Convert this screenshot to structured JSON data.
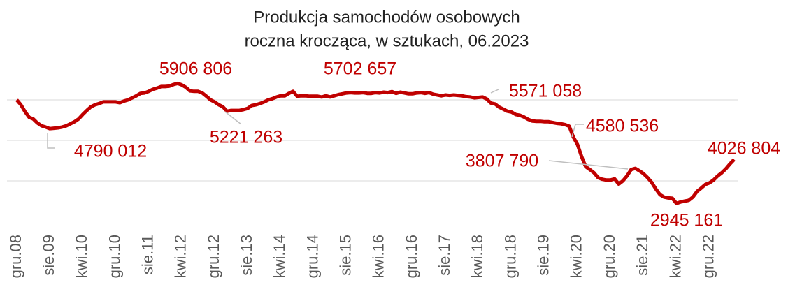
{
  "chart_data": {
    "type": "line",
    "title": [
      "Produkcja samochodów osobowych",
      "roczna krocząca, w sztukach, 06.2023"
    ],
    "categories": [
      "gru.08",
      null,
      null,
      null,
      null,
      null,
      null,
      null,
      "sie.09",
      null,
      null,
      null,
      null,
      null,
      null,
      null,
      "kwi.10",
      null,
      null,
      null,
      null,
      null,
      null,
      null,
      "gru.10",
      null,
      null,
      null,
      null,
      null,
      null,
      null,
      "sie.11",
      null,
      null,
      null,
      null,
      null,
      null,
      null,
      "kwi.12",
      null,
      null,
      null,
      null,
      null,
      null,
      null,
      "gru.12",
      null,
      null,
      null,
      null,
      null,
      null,
      null,
      "sie.13",
      null,
      null,
      null,
      null,
      null,
      null,
      null,
      "kwi.14",
      null,
      null,
      null,
      null,
      null,
      null,
      null,
      "gru.14",
      null,
      null,
      null,
      null,
      null,
      null,
      null,
      "sie.15",
      null,
      null,
      null,
      null,
      null,
      null,
      null,
      "kwi.16",
      null,
      null,
      null,
      null,
      null,
      null,
      null,
      "gru.16",
      null,
      null,
      null,
      null,
      null,
      null,
      null,
      "sie.17",
      null,
      null,
      null,
      null,
      null,
      null,
      null,
      "kwi.18",
      null,
      null,
      null,
      null,
      null,
      null,
      null,
      "gru.18",
      null,
      null,
      null,
      null,
      null,
      null,
      null,
      "sie.19",
      null,
      null,
      null,
      null,
      null,
      null,
      null,
      "kwi.20",
      null,
      null,
      null,
      null,
      null,
      null,
      null,
      "gru.20",
      null,
      null,
      null,
      null,
      null,
      null,
      null,
      "sie.21",
      null,
      null,
      null,
      null,
      null,
      null,
      null,
      "kwi.22",
      null,
      null,
      null,
      null,
      null,
      null,
      null,
      "gru.22",
      null,
      null,
      null,
      null,
      null,
      null
    ],
    "series": [
      {
        "color": "#c00000",
        "values": [
          5500000,
          5380000,
          5210000,
          5070000,
          5030000,
          4930000,
          4860000,
          4830000,
          4790012,
          4800000,
          4810000,
          4830000,
          4860000,
          4910000,
          4960000,
          5030000,
          5140000,
          5240000,
          5330000,
          5380000,
          5410000,
          5450000,
          5450000,
          5450000,
          5450000,
          5430000,
          5470000,
          5500000,
          5550000,
          5600000,
          5660000,
          5670000,
          5710000,
          5760000,
          5790000,
          5830000,
          5830000,
          5840000,
          5880000,
          5906806,
          5870000,
          5810000,
          5720000,
          5710000,
          5710000,
          5670000,
          5590000,
          5500000,
          5450000,
          5380000,
          5330000,
          5221263,
          5240000,
          5240000,
          5240000,
          5260000,
          5290000,
          5360000,
          5380000,
          5410000,
          5450000,
          5500000,
          5530000,
          5570000,
          5600000,
          5600000,
          5660000,
          5710000,
          5590000,
          5600000,
          5600000,
          5590000,
          5590000,
          5590000,
          5570000,
          5600000,
          5570000,
          5600000,
          5630000,
          5650000,
          5670000,
          5680000,
          5670000,
          5670000,
          5680000,
          5660000,
          5660000,
          5680000,
          5670000,
          5690000,
          5680000,
          5702657,
          5660000,
          5690000,
          5670000,
          5650000,
          5650000,
          5670000,
          5680000,
          5660000,
          5680000,
          5640000,
          5620000,
          5600000,
          5620000,
          5610000,
          5620000,
          5610000,
          5600000,
          5580000,
          5570000,
          5550000,
          5560000,
          5571058,
          5520000,
          5420000,
          5400000,
          5320000,
          5270000,
          5220000,
          5200000,
          5140000,
          5120000,
          5080000,
          5020000,
          4980000,
          4970000,
          4970000,
          4960000,
          4960000,
          4940000,
          4920000,
          4910000,
          4890000,
          4850000,
          4580536,
          4400000,
          4100000,
          3850000,
          3780000,
          3700000,
          3580000,
          3540000,
          3520000,
          3520000,
          3550000,
          3420000,
          3500000,
          3620000,
          3780000,
          3807790,
          3750000,
          3680000,
          3580000,
          3460000,
          3300000,
          3160000,
          3100000,
          3080000,
          3070000,
          2945161,
          2980000,
          3000000,
          3020000,
          3100000,
          3240000,
          3320000,
          3410000,
          3450000,
          3520000,
          3620000,
          3700000,
          3800000,
          3920000,
          4026804
        ],
        "value_labels": [
          null,
          null,
          null,
          null,
          null,
          null,
          null,
          null,
          "4790 012",
          null,
          null,
          null,
          null,
          null,
          null,
          null,
          null,
          null,
          null,
          null,
          null,
          null,
          null,
          null,
          null,
          null,
          null,
          null,
          null,
          null,
          null,
          null,
          null,
          null,
          null,
          null,
          null,
          null,
          null,
          "5906 806",
          null,
          null,
          null,
          null,
          null,
          null,
          null,
          null,
          null,
          null,
          null,
          "5221 263",
          null,
          null,
          null,
          null,
          null,
          null,
          null,
          null,
          null,
          null,
          null,
          null,
          null,
          null,
          null,
          null,
          null,
          null,
          null,
          null,
          null,
          null,
          null,
          null,
          null,
          null,
          null,
          null,
          null,
          null,
          null,
          null,
          null,
          null,
          null,
          null,
          null,
          null,
          null,
          "5702 657",
          null,
          null,
          null,
          null,
          null,
          null,
          null,
          null,
          null,
          null,
          null,
          null,
          null,
          null,
          null,
          null,
          null,
          null,
          null,
          null,
          null,
          "5571 058",
          null,
          null,
          null,
          null,
          null,
          null,
          null,
          null,
          null,
          null,
          null,
          null,
          null,
          null,
          null,
          null,
          null,
          null,
          null,
          null,
          null,
          "4580 536",
          null,
          null,
          null,
          null,
          null,
          null,
          null,
          null,
          null,
          null,
          null,
          null,
          null,
          null,
          "3807 790",
          null,
          null,
          null,
          null,
          null,
          null,
          null,
          null,
          null,
          "2945 161",
          null,
          null,
          null,
          null,
          null,
          null,
          null,
          null,
          null,
          null,
          null,
          null,
          null,
          "4026 804"
        ]
      }
    ],
    "ylim": [
      2500000,
      6500000
    ],
    "yticks": [
      3500000,
      4500000,
      5500000
    ],
    "grid": true
  }
}
